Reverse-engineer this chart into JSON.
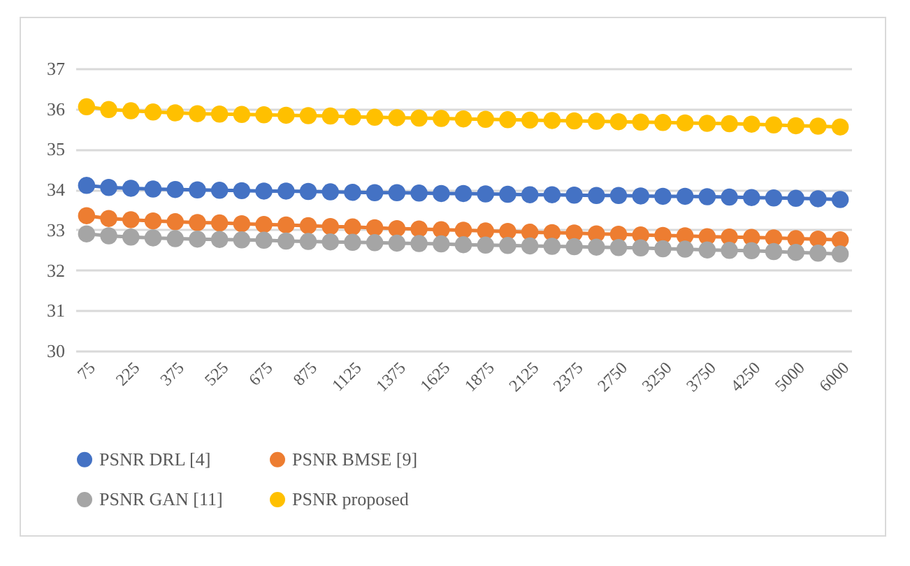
{
  "chart_data": {
    "type": "line",
    "categories": [
      "75",
      null,
      "225",
      null,
      "375",
      null,
      "525",
      null,
      "675",
      null,
      "875",
      null,
      "1125",
      null,
      "1375",
      null,
      "1625",
      null,
      "1875",
      null,
      "2125",
      null,
      "2375",
      null,
      "2750",
      null,
      "3250",
      null,
      "3750",
      null,
      "4250",
      null,
      "5000",
      null,
      "6000"
    ],
    "series": [
      {
        "name": "PSNR DRL [4]",
        "color": "#4472c4",
        "values": [
          34.1,
          34.05,
          34.03,
          34.01,
          34.0,
          33.99,
          33.98,
          33.97,
          33.96,
          33.96,
          33.95,
          33.94,
          33.93,
          33.92,
          33.92,
          33.91,
          33.9,
          33.9,
          33.89,
          33.88,
          33.87,
          33.87,
          33.86,
          33.85,
          33.85,
          33.84,
          33.83,
          33.83,
          33.82,
          33.81,
          33.8,
          33.79,
          33.78,
          33.77,
          33.75
        ]
      },
      {
        "name": "PSNR BMSE [9]",
        "color": "#ed7d31",
        "values": [
          33.35,
          33.28,
          33.25,
          33.22,
          33.2,
          33.18,
          33.17,
          33.15,
          33.13,
          33.12,
          33.1,
          33.08,
          33.07,
          33.05,
          33.03,
          33.02,
          33.0,
          32.99,
          32.97,
          32.96,
          32.94,
          32.93,
          32.92,
          32.9,
          32.89,
          32.87,
          32.86,
          32.85,
          32.83,
          32.82,
          32.81,
          32.8,
          32.78,
          32.77,
          32.75
        ]
      },
      {
        "name": "PSNR GAN [11]",
        "color": "#a5a5a5",
        "values": [
          32.9,
          32.85,
          32.82,
          32.8,
          32.78,
          32.77,
          32.76,
          32.75,
          32.74,
          32.72,
          32.71,
          32.7,
          32.69,
          32.68,
          32.67,
          32.66,
          32.65,
          32.63,
          32.62,
          32.61,
          32.6,
          32.59,
          32.58,
          32.57,
          32.56,
          32.55,
          32.53,
          32.52,
          32.5,
          32.49,
          32.48,
          32.46,
          32.44,
          32.42,
          32.4
        ]
      },
      {
        "name": "PSNR proposed",
        "color": "#ffc000",
        "values": [
          36.05,
          35.98,
          35.95,
          35.92,
          35.9,
          35.88,
          35.87,
          35.86,
          35.85,
          35.84,
          35.83,
          35.82,
          35.8,
          35.79,
          35.78,
          35.77,
          35.76,
          35.75,
          35.74,
          35.73,
          35.72,
          35.71,
          35.7,
          35.69,
          35.68,
          35.67,
          35.66,
          35.65,
          35.64,
          35.63,
          35.62,
          35.6,
          35.58,
          35.57,
          35.55
        ]
      }
    ],
    "ylim": [
      30,
      37
    ],
    "yticks": [
      30,
      31,
      32,
      33,
      34,
      35,
      36,
      37
    ],
    "grid": "y",
    "legend": "bottom",
    "marker": "circle",
    "line_style": "solid"
  }
}
